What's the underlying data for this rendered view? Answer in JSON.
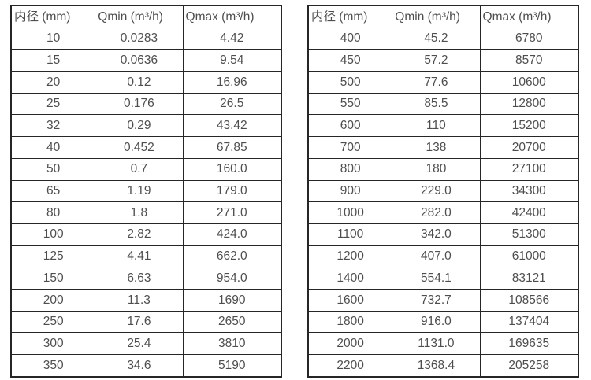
{
  "colors": {
    "border": "#262626",
    "text": "#4e4e4e",
    "background": "#ffffff"
  },
  "table_left": {
    "headers": [
      "内径 (mm)",
      "Qmin (m³/h)",
      "Qmax (m³/h)"
    ],
    "rows": [
      [
        "10",
        "0.0283",
        "4.42"
      ],
      [
        "15",
        "0.0636",
        "9.54"
      ],
      [
        "20",
        "0.12",
        "16.96"
      ],
      [
        "25",
        "0.176",
        "26.5"
      ],
      [
        "32",
        "0.29",
        "43.42"
      ],
      [
        "40",
        "0.452",
        "67.85"
      ],
      [
        "50",
        "0.7",
        "160.0"
      ],
      [
        "65",
        "1.19",
        "179.0"
      ],
      [
        "80",
        "1.8",
        "271.0"
      ],
      [
        "100",
        "2.82",
        "424.0"
      ],
      [
        "125",
        "4.41",
        "662.0"
      ],
      [
        "150",
        "6.63",
        "954.0"
      ],
      [
        "200",
        "11.3",
        "1690"
      ],
      [
        "250",
        "17.6",
        "2650"
      ],
      [
        "300",
        "25.4",
        "3810"
      ],
      [
        "350",
        "34.6",
        "5190"
      ]
    ]
  },
  "table_right": {
    "headers": [
      "内径 (mm)",
      "Qmin (m³/h)",
      "Qmax (m³/h)"
    ],
    "rows": [
      [
        "400",
        "45.2",
        "6780"
      ],
      [
        "450",
        "57.2",
        "8570"
      ],
      [
        "500",
        "77.6",
        "10600"
      ],
      [
        "550",
        "85.5",
        "12800"
      ],
      [
        "600",
        "110",
        "15200"
      ],
      [
        "700",
        "138",
        "20700"
      ],
      [
        "800",
        "180",
        "27100"
      ],
      [
        "900",
        "229.0",
        "34300"
      ],
      [
        "1000",
        "282.0",
        "42400"
      ],
      [
        "1100",
        "342.0",
        "51300"
      ],
      [
        "1200",
        "407.0",
        "61000"
      ],
      [
        "1400",
        "554.1",
        "83121"
      ],
      [
        "1600",
        "732.7",
        "108566"
      ],
      [
        "1800",
        "916.0",
        "137404"
      ],
      [
        "2000",
        "1131.0",
        "169635"
      ],
      [
        "2200",
        "1368.4",
        "205258"
      ]
    ]
  }
}
